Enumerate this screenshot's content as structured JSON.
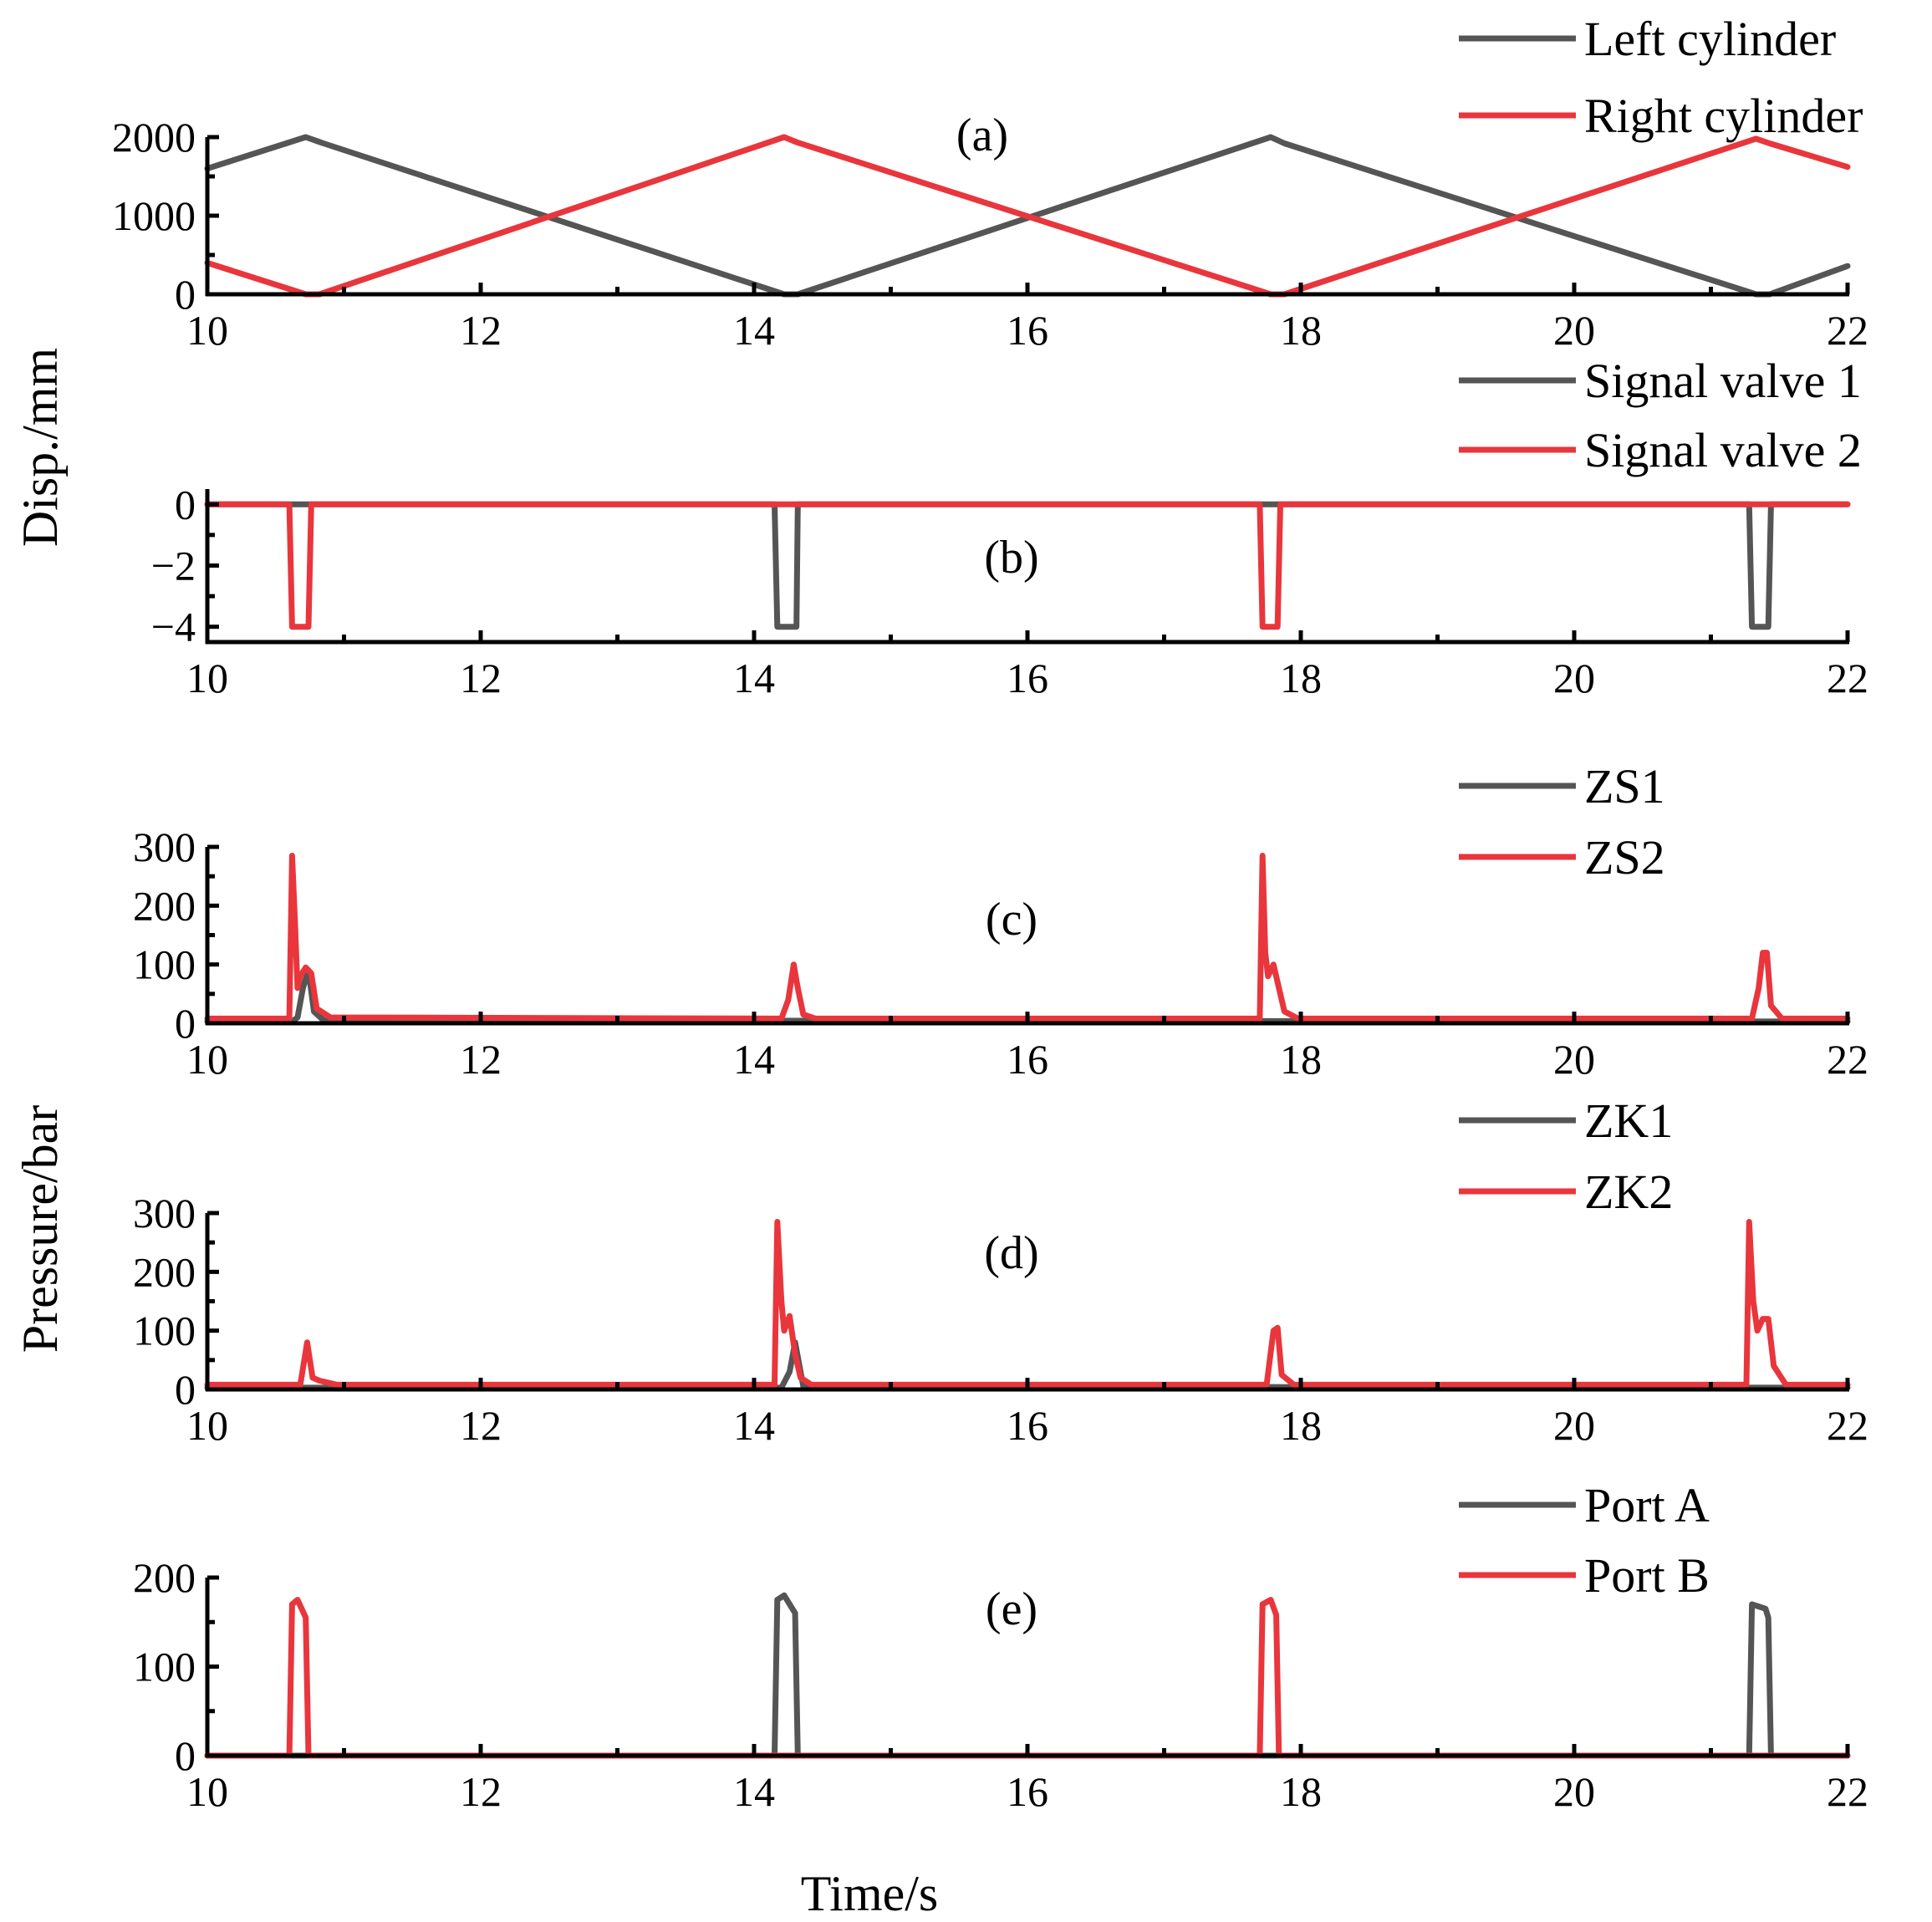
{
  "figure": {
    "xlabel": "Time/s",
    "ylabel_top": "Disp./mm",
    "ylabel_bottom": "Pressure/bar"
  },
  "colors": {
    "series1": "#555555",
    "series2": "#e8363c"
  },
  "chart_data": [
    {
      "type": "line",
      "panel": "(a)",
      "xlim": [
        10,
        22
      ],
      "ylim": [
        0,
        2000
      ],
      "xticks": [
        10,
        12,
        14,
        16,
        18,
        20,
        22
      ],
      "yticks": [
        0,
        1000,
        2000
      ],
      "legend": [
        "Left cylinder",
        "Right cylinder"
      ],
      "series": [
        {
          "name": "Left cylinder",
          "color": "#555555",
          "x": [
            10,
            10.72,
            10.85,
            14.22,
            14.32,
            17.78,
            17.88,
            21.33,
            21.43,
            22
          ],
          "y": [
            1600,
            2000,
            1920,
            0,
            0,
            2000,
            1920,
            0,
            0,
            360
          ]
        },
        {
          "name": "Right cylinder",
          "color": "#e8363c",
          "x": [
            10,
            10.72,
            10.82,
            14.22,
            14.32,
            17.78,
            17.88,
            21.33,
            21.43,
            22
          ],
          "y": [
            400,
            0,
            0,
            2000,
            1930,
            0,
            0,
            1980,
            1920,
            1620
          ]
        }
      ]
    },
    {
      "type": "line",
      "panel": "(b)",
      "xlim": [
        10,
        22
      ],
      "ylim": [
        -4.5,
        0.5
      ],
      "xticks": [
        10,
        12,
        14,
        16,
        18,
        20,
        22
      ],
      "yticks": [
        -4,
        -2,
        0
      ],
      "ytick_labels": [
        "−4",
        "−2",
        "0"
      ],
      "legend": [
        "Signal valve 1",
        "Signal valve 2"
      ],
      "series": [
        {
          "name": "Signal valve 1",
          "color": "#555555",
          "x": [
            10,
            14.15,
            14.17,
            14.31,
            14.32,
            21.28,
            21.3,
            21.42,
            21.44,
            22
          ],
          "y": [
            0,
            0,
            -4,
            -4,
            0,
            0,
            -4,
            -4,
            0,
            0
          ]
        },
        {
          "name": "Signal valve 2",
          "color": "#e8363c",
          "x": [
            10,
            10.6,
            10.62,
            10.74,
            10.76,
            17.7,
            17.72,
            17.83,
            17.85,
            22
          ],
          "y": [
            0,
            0,
            -4,
            -4,
            0,
            0,
            -4,
            -4,
            0,
            0
          ]
        }
      ]
    },
    {
      "type": "line",
      "panel": "(c)",
      "xlim": [
        10,
        22
      ],
      "ylim": [
        0,
        300
      ],
      "xticks": [
        10,
        12,
        14,
        16,
        18,
        20,
        22
      ],
      "yticks": [
        0,
        100,
        200,
        300
      ],
      "legend": [
        "ZS1",
        "ZS2"
      ],
      "series": [
        {
          "name": "ZS1",
          "color": "#555555",
          "x": [
            10,
            10.62,
            10.66,
            10.7,
            10.74,
            10.78,
            10.85,
            22
          ],
          "y": [
            3,
            3,
            10,
            60,
            90,
            20,
            5,
            3
          ]
        },
        {
          "name": "ZS2",
          "color": "#e8363c",
          "x": [
            10,
            10.6,
            10.62,
            10.64,
            10.66,
            10.68,
            10.72,
            10.76,
            10.8,
            10.9,
            14.2,
            14.25,
            14.29,
            14.32,
            14.36,
            14.45,
            17.7,
            17.72,
            17.74,
            17.76,
            17.8,
            17.84,
            17.88,
            17.98,
            21.3,
            21.35,
            21.38,
            21.41,
            21.44,
            21.52,
            22
          ],
          "y": [
            8,
            8,
            285,
            180,
            60,
            80,
            95,
            85,
            25,
            10,
            8,
            40,
            100,
            60,
            15,
            8,
            8,
            285,
            120,
            80,
            100,
            60,
            20,
            8,
            8,
            60,
            120,
            120,
            30,
            8,
            8
          ]
        }
      ]
    },
    {
      "type": "line",
      "panel": "(d)",
      "xlim": [
        10,
        22
      ],
      "ylim": [
        0,
        300
      ],
      "xticks": [
        10,
        12,
        14,
        16,
        18,
        20,
        22
      ],
      "yticks": [
        0,
        100,
        200,
        300
      ],
      "legend": [
        "ZK1",
        "ZK2"
      ],
      "series": [
        {
          "name": "ZK1",
          "color": "#555555",
          "x": [
            10,
            14.2,
            14.26,
            14.3,
            14.36,
            22
          ],
          "y": [
            3,
            3,
            30,
            80,
            5,
            3
          ]
        },
        {
          "name": "ZK2",
          "color": "#e8363c",
          "x": [
            10,
            10.68,
            10.73,
            10.77,
            10.82,
            10.95,
            14.15,
            14.17,
            14.2,
            14.22,
            14.26,
            14.3,
            14.34,
            14.42,
            17.75,
            17.8,
            17.83,
            17.86,
            17.95,
            21.26,
            21.28,
            21.31,
            21.34,
            21.38,
            21.42,
            21.46,
            21.55,
            22
          ],
          "y": [
            8,
            8,
            80,
            20,
            15,
            8,
            8,
            285,
            150,
            100,
            125,
            60,
            20,
            8,
            8,
            100,
            105,
            25,
            8,
            8,
            285,
            150,
            100,
            120,
            120,
            40,
            8,
            8
          ]
        }
      ]
    },
    {
      "type": "line",
      "panel": "(e)",
      "xlim": [
        10,
        22
      ],
      "ylim": [
        0,
        200
      ],
      "xticks": [
        10,
        12,
        14,
        16,
        18,
        20,
        22
      ],
      "yticks": [
        0,
        100,
        200
      ],
      "legend": [
        "Port A",
        "Port B"
      ],
      "series": [
        {
          "name": "Port A",
          "color": "#555555",
          "x": [
            10,
            14.15,
            14.17,
            14.22,
            14.3,
            14.32,
            14.34,
            21.28,
            21.3,
            21.4,
            21.42,
            21.44,
            22
          ],
          "y": [
            0,
            0,
            175,
            180,
            160,
            0,
            0,
            0,
            170,
            165,
            155,
            0,
            0
          ]
        },
        {
          "name": "Port B",
          "color": "#e8363c",
          "x": [
            10,
            10.6,
            10.62,
            10.66,
            10.72,
            10.74,
            10.76,
            17.7,
            17.72,
            17.78,
            17.82,
            17.84,
            17.86,
            22
          ],
          "y": [
            0,
            0,
            170,
            175,
            155,
            0,
            0,
            0,
            170,
            175,
            158,
            0,
            0,
            0
          ]
        }
      ]
    }
  ]
}
